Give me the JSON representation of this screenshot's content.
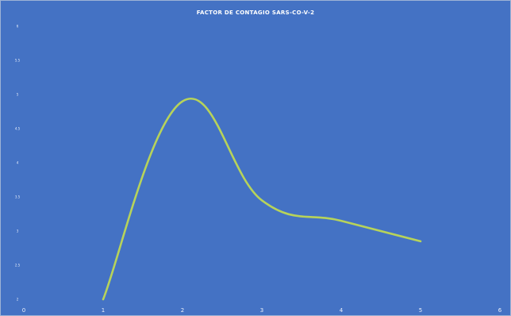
{
  "chart_data": {
    "type": "line",
    "title": "FACTOR DE CONTAGIO SARS-CO-V-2",
    "xlabel": "",
    "ylabel": "",
    "xlim": [
      0,
      6
    ],
    "ylim": [
      2,
      6
    ],
    "x_ticks": [
      0,
      1,
      2,
      3,
      4,
      5,
      6
    ],
    "x_tick_labels": [
      "0",
      "1",
      "2",
      "3",
      "4",
      "5",
      "6"
    ],
    "y_ticks": [
      2,
      2.5,
      3,
      3.5,
      4,
      4.5,
      5,
      5.5,
      6
    ],
    "y_tick_labels": [
      "2",
      "2.5",
      "3",
      "3.5",
      "4",
      "4.5",
      "5",
      "5.5",
      "6"
    ],
    "grid": false,
    "legend": "none",
    "smooth": true,
    "series": [
      {
        "x": [
          1,
          2,
          3,
          4,
          5
        ],
        "y": [
          2.0,
          4.9,
          3.45,
          3.15,
          2.85
        ]
      }
    ],
    "colors": {
      "background": "#4472c4",
      "line": "#b7d35a",
      "text": "#ffffff"
    }
  }
}
